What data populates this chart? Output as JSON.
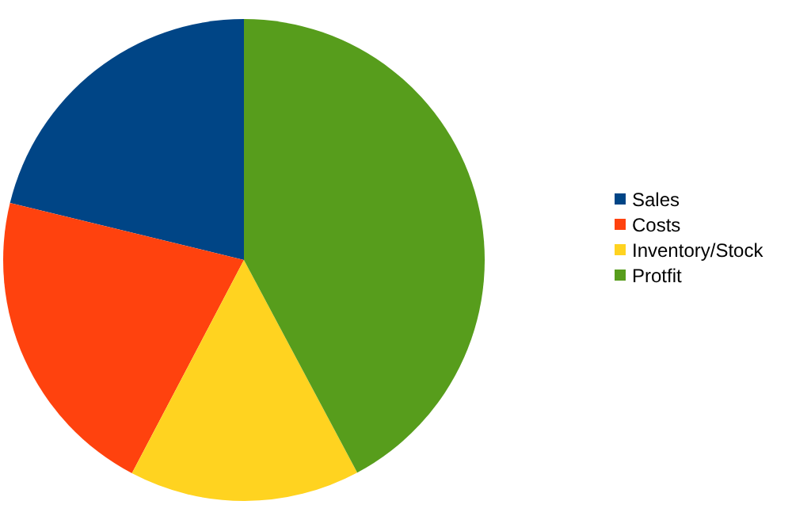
{
  "chart_data": {
    "type": "pie",
    "categories": [
      "Sales",
      "Costs",
      "Inventory/Stock",
      "Protfit"
    ],
    "values": [
      21.2,
      21.1,
      15.5,
      42.2
    ],
    "colors": [
      "#004586",
      "#ff420e",
      "#ffd320",
      "#579d1c"
    ],
    "legend": "right"
  }
}
